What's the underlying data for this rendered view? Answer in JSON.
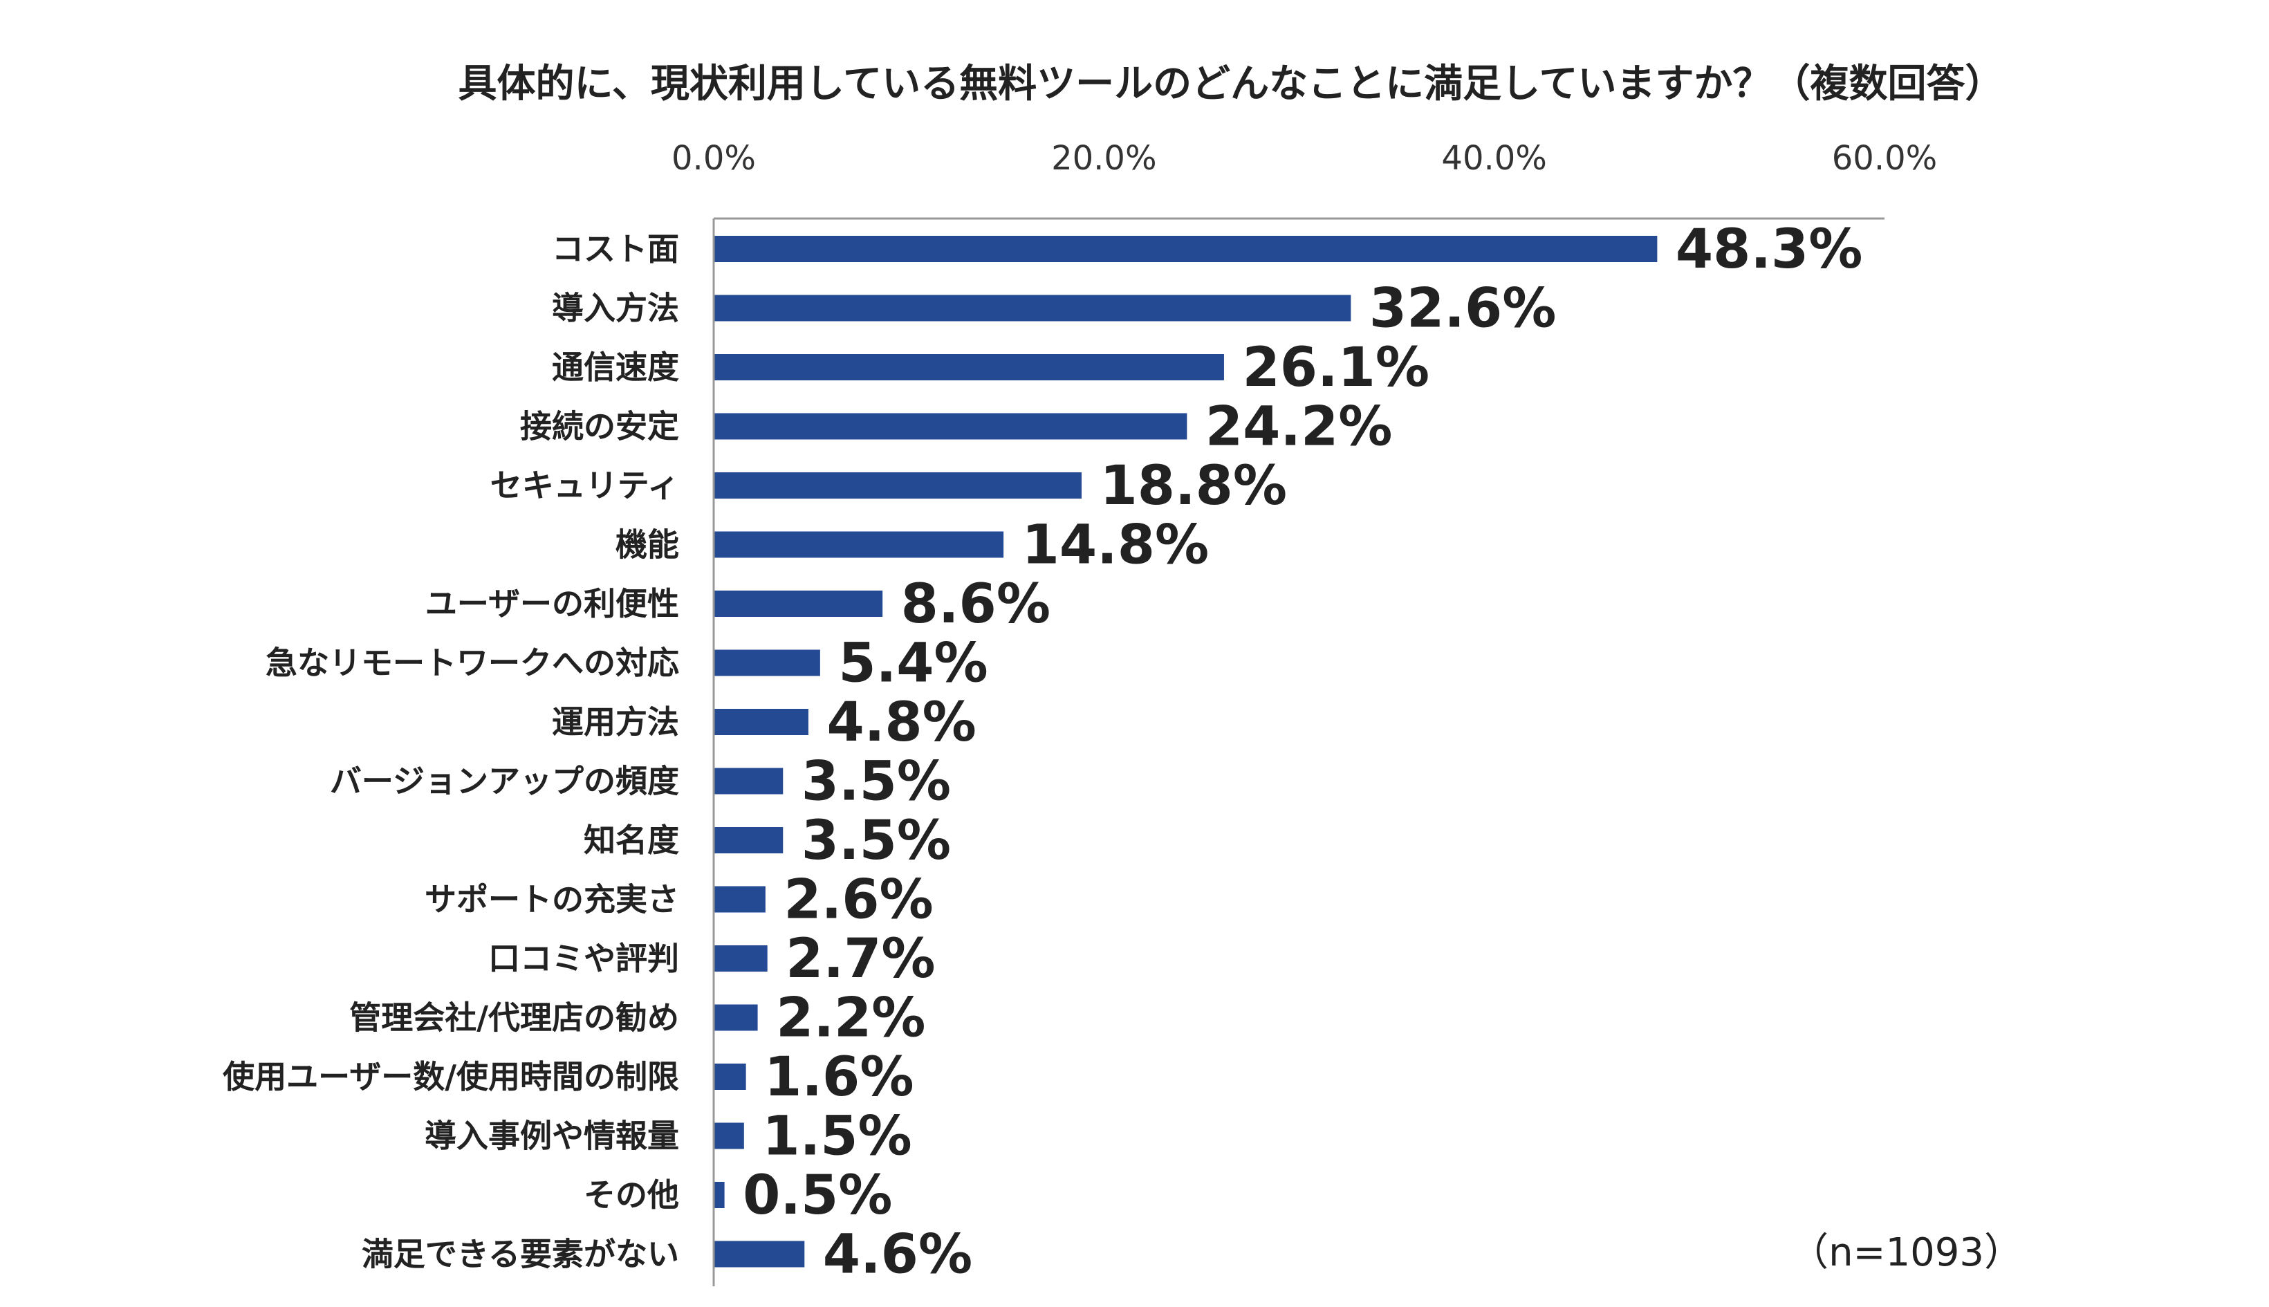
{
  "chart_data": {
    "type": "bar",
    "orientation": "horizontal",
    "title": "具体的に、現状利用している無料ツールのどんなことに満足していますか？（複数回答）",
    "note": "（n=1093）",
    "xlim": [
      0,
      60
    ],
    "x_ticks": [
      "0.0%",
      "20.0%",
      "40.0%",
      "60.0%"
    ],
    "x_axis_position": "top",
    "grid": false,
    "bar_color": "#244a94",
    "categories": [
      "コスト面",
      "導入方法",
      "通信速度",
      "接続の安定",
      "セキュリティ",
      "機能",
      "ユーザーの利便性",
      "急なリモートワークへの対応",
      "運用方法",
      "バージョンアップの頻度",
      "知名度",
      "サポートの充実さ",
      "口コミや評判",
      "管理会社/代理店の勧め",
      "使用ユーザー数/使用時間の制限",
      "導入事例や情報量",
      "その他",
      "満足できる要素がない"
    ],
    "values": [
      48.3,
      32.6,
      26.1,
      24.2,
      18.8,
      14.8,
      8.6,
      5.4,
      4.8,
      3.5,
      3.5,
      2.6,
      2.7,
      2.2,
      1.6,
      1.5,
      0.5,
      4.6
    ],
    "value_labels": [
      "48.3%",
      "32.6%",
      "26.1%",
      "24.2%",
      "18.8%",
      "14.8%",
      "8.6%",
      "5.4%",
      "4.8%",
      "3.5%",
      "3.5%",
      "2.6%",
      "2.7%",
      "2.2%",
      "1.6%",
      "1.5%",
      "0.5%",
      "4.6%"
    ]
  }
}
